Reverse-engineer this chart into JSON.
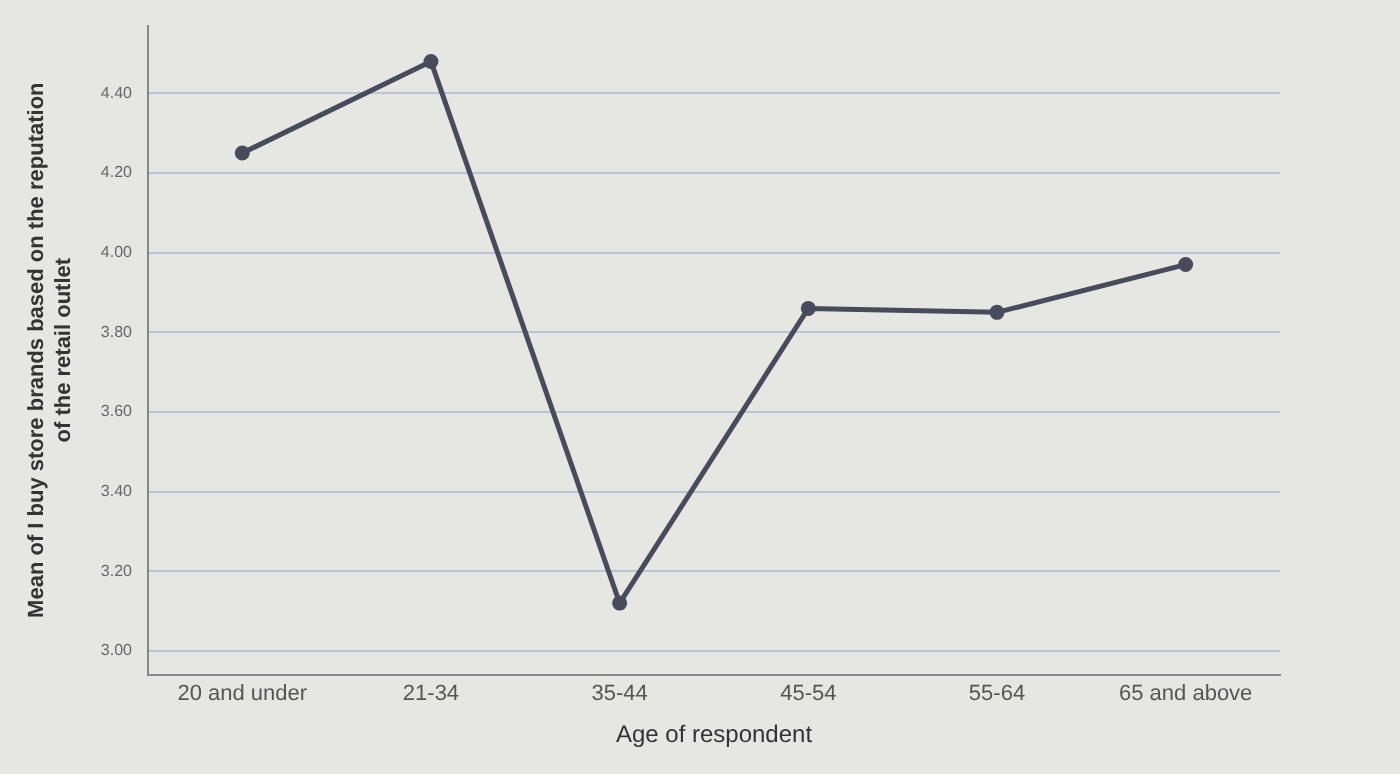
{
  "chart_data": {
    "type": "line",
    "xlabel": "Age of respondent",
    "ylabel": "Mean of I buy store brands based on the reputation of the retail outlet",
    "categories": [
      "20 and under",
      "21-34",
      "35-44",
      "45-54",
      "55-64",
      "65 and above"
    ],
    "series": [
      {
        "color": "#474b5c",
        "values": [
          4.25,
          4.48,
          3.12,
          3.86,
          3.85,
          3.97
        ]
      }
    ],
    "ylim": [
      2.94,
      4.57
    ],
    "yticks": [
      {
        "value": 3,
        "label": "3.00"
      },
      {
        "value": 3.2,
        "label": "3.20"
      },
      {
        "value": 3.4,
        "label": "3.40"
      },
      {
        "value": 3.6,
        "label": "3.60"
      },
      {
        "value": 3.8,
        "label": "3.80"
      },
      {
        "value": 4,
        "label": "4.00"
      },
      {
        "value": 4.2,
        "label": "4.20"
      },
      {
        "value": 4.4,
        "label": "4.40"
      }
    ],
    "grid": "y",
    "marker": "circle",
    "line_style": "solid",
    "legend": false
  }
}
